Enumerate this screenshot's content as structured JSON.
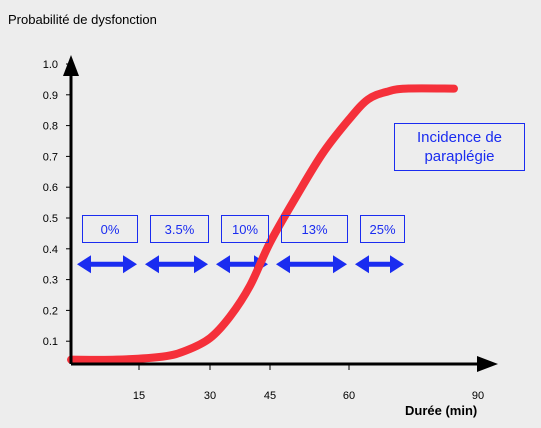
{
  "chart_data": {
    "type": "line",
    "ylabel": "Probabilité de dysfonction",
    "xlabel": "Durée (min)",
    "y_ticks": [
      "1.0",
      "0.9",
      "0.8",
      "0.7",
      "0.6",
      "0.5",
      "0.4",
      "0.3",
      "0.2",
      "0.1"
    ],
    "y_tick_values": [
      1.0,
      0.9,
      0.8,
      0.7,
      0.6,
      0.5,
      0.4,
      0.3,
      0.2,
      0.1
    ],
    "x_ticks": [
      "15",
      "30",
      "45",
      "60",
      "90"
    ],
    "x_tick_values": [
      15,
      30,
      45,
      60,
      90
    ],
    "xlim": [
      0,
      90
    ],
    "ylim": [
      0,
      1.0
    ],
    "series": [
      {
        "color": "#f5303a",
        "points": [
          [
            0,
            0.04
          ],
          [
            10,
            0.04
          ],
          [
            20,
            0.05
          ],
          [
            25,
            0.07
          ],
          [
            30,
            0.11
          ],
          [
            35,
            0.18
          ],
          [
            40,
            0.28
          ],
          [
            45,
            0.42
          ],
          [
            50,
            0.57
          ],
          [
            55,
            0.71
          ],
          [
            60,
            0.82
          ],
          [
            65,
            0.885
          ],
          [
            70,
            0.91
          ],
          [
            75,
            0.92
          ],
          [
            85,
            0.92
          ]
        ]
      }
    ],
    "annotation": {
      "legend_text": "Incidence de\nparaplégie",
      "arrow_y": 0.35,
      "intervals": [
        {
          "label": "0%",
          "start": 0,
          "end": 15
        },
        {
          "label": "3.5%",
          "start": 15,
          "end": 30
        },
        {
          "label": "10%",
          "start": 30,
          "end": 45
        },
        {
          "label": "13%",
          "start": 45,
          "end": 60
        },
        {
          "label": "25%",
          "start": 60,
          "end": 75
        }
      ]
    },
    "colors": {
      "background": "#ededed",
      "curve": "#f5303a",
      "annotation": "#1a2cf0",
      "axis": "#000000"
    }
  }
}
